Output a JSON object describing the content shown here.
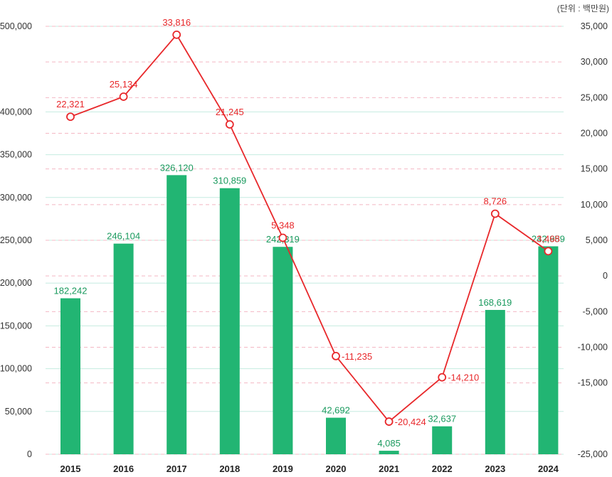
{
  "chart_data": {
    "type": "bar+line",
    "unit_label": "(단위 : 백만원)",
    "categories": [
      "2015",
      "2016",
      "2017",
      "2018",
      "2019",
      "2020",
      "2021",
      "2022",
      "2023",
      "2024"
    ],
    "series": [
      {
        "name": "bar",
        "type": "bar",
        "axis": "left",
        "values": [
          182242,
          246104,
          326120,
          310859,
          242319,
          42692,
          4085,
          32637,
          168619,
          242959
        ],
        "labels": [
          "182,242",
          "246,104",
          "326,120",
          "310,859",
          "242,319",
          "42,692",
          "4,085",
          "32,637",
          "168,619",
          "242,959"
        ]
      },
      {
        "name": "line",
        "type": "line",
        "axis": "right",
        "values": [
          22321,
          25134,
          33816,
          21245,
          5348,
          -11235,
          -20424,
          -14210,
          8726,
          3468
        ],
        "labels": [
          "22,321",
          "25,134",
          "33,816",
          "21,245",
          "5,348",
          "-11,235",
          "-20,424",
          "-14,210",
          "8,726",
          "3,468"
        ]
      }
    ],
    "left_axis": {
      "min": 0,
      "max": 500000,
      "ticks": [
        0,
        50000,
        100000,
        150000,
        200000,
        250000,
        300000,
        350000,
        400000,
        500000
      ],
      "tick_labels": [
        "0",
        "50,000",
        "100,000",
        "150,000",
        "200,000",
        "250,000",
        "300,000",
        "350,000",
        "400,000",
        "500,000"
      ]
    },
    "right_axis": {
      "min": -25000,
      "max": 35000,
      "ticks": [
        35000,
        30000,
        25000,
        20000,
        15000,
        10000,
        5000,
        0,
        -5000,
        -10000,
        -15000,
        -25000
      ],
      "tick_labels": [
        "35,000",
        "30,000",
        "25,000",
        "20,000",
        "15,000",
        "10,000",
        "5,000",
        "0",
        "-5,000",
        "-10,000",
        "-15,000",
        "-25,000"
      ]
    },
    "colors": {
      "bar": "#22b573",
      "bar_label": "#1a9a5e",
      "line": "#e8282b",
      "grid_solid": "#c5ece0",
      "grid_dashed": "#f4b8c4"
    }
  }
}
